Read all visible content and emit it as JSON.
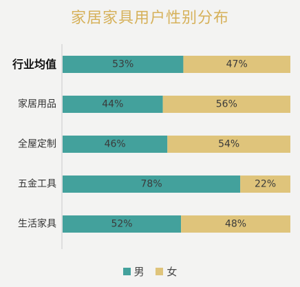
{
  "colors": {
    "male": "#43a19c",
    "female": "#dfc47b",
    "title": "#d6b15a",
    "axis": "#c9c9c9"
  },
  "legend": {
    "male": "男",
    "female": "女"
  },
  "chart_data": {
    "type": "bar",
    "orientation": "horizontal",
    "stacked": true,
    "title": "家居家具用户性别分布",
    "categories": [
      "行业均值",
      "家居用品",
      "全屋定制",
      "五金工具",
      "生活家具"
    ],
    "series": [
      {
        "name": "男",
        "values": [
          53,
          44,
          46,
          78,
          52
        ],
        "labels": [
          "53%",
          "44%",
          "46%",
          "78%",
          "52%"
        ]
      },
      {
        "name": "女",
        "values": [
          47,
          56,
          54,
          22,
          48
        ],
        "labels": [
          "47%",
          "56%",
          "54%",
          "22%",
          "48%"
        ]
      }
    ],
    "xlim": [
      0,
      100
    ],
    "legend_position": "bottom",
    "grid": false
  }
}
